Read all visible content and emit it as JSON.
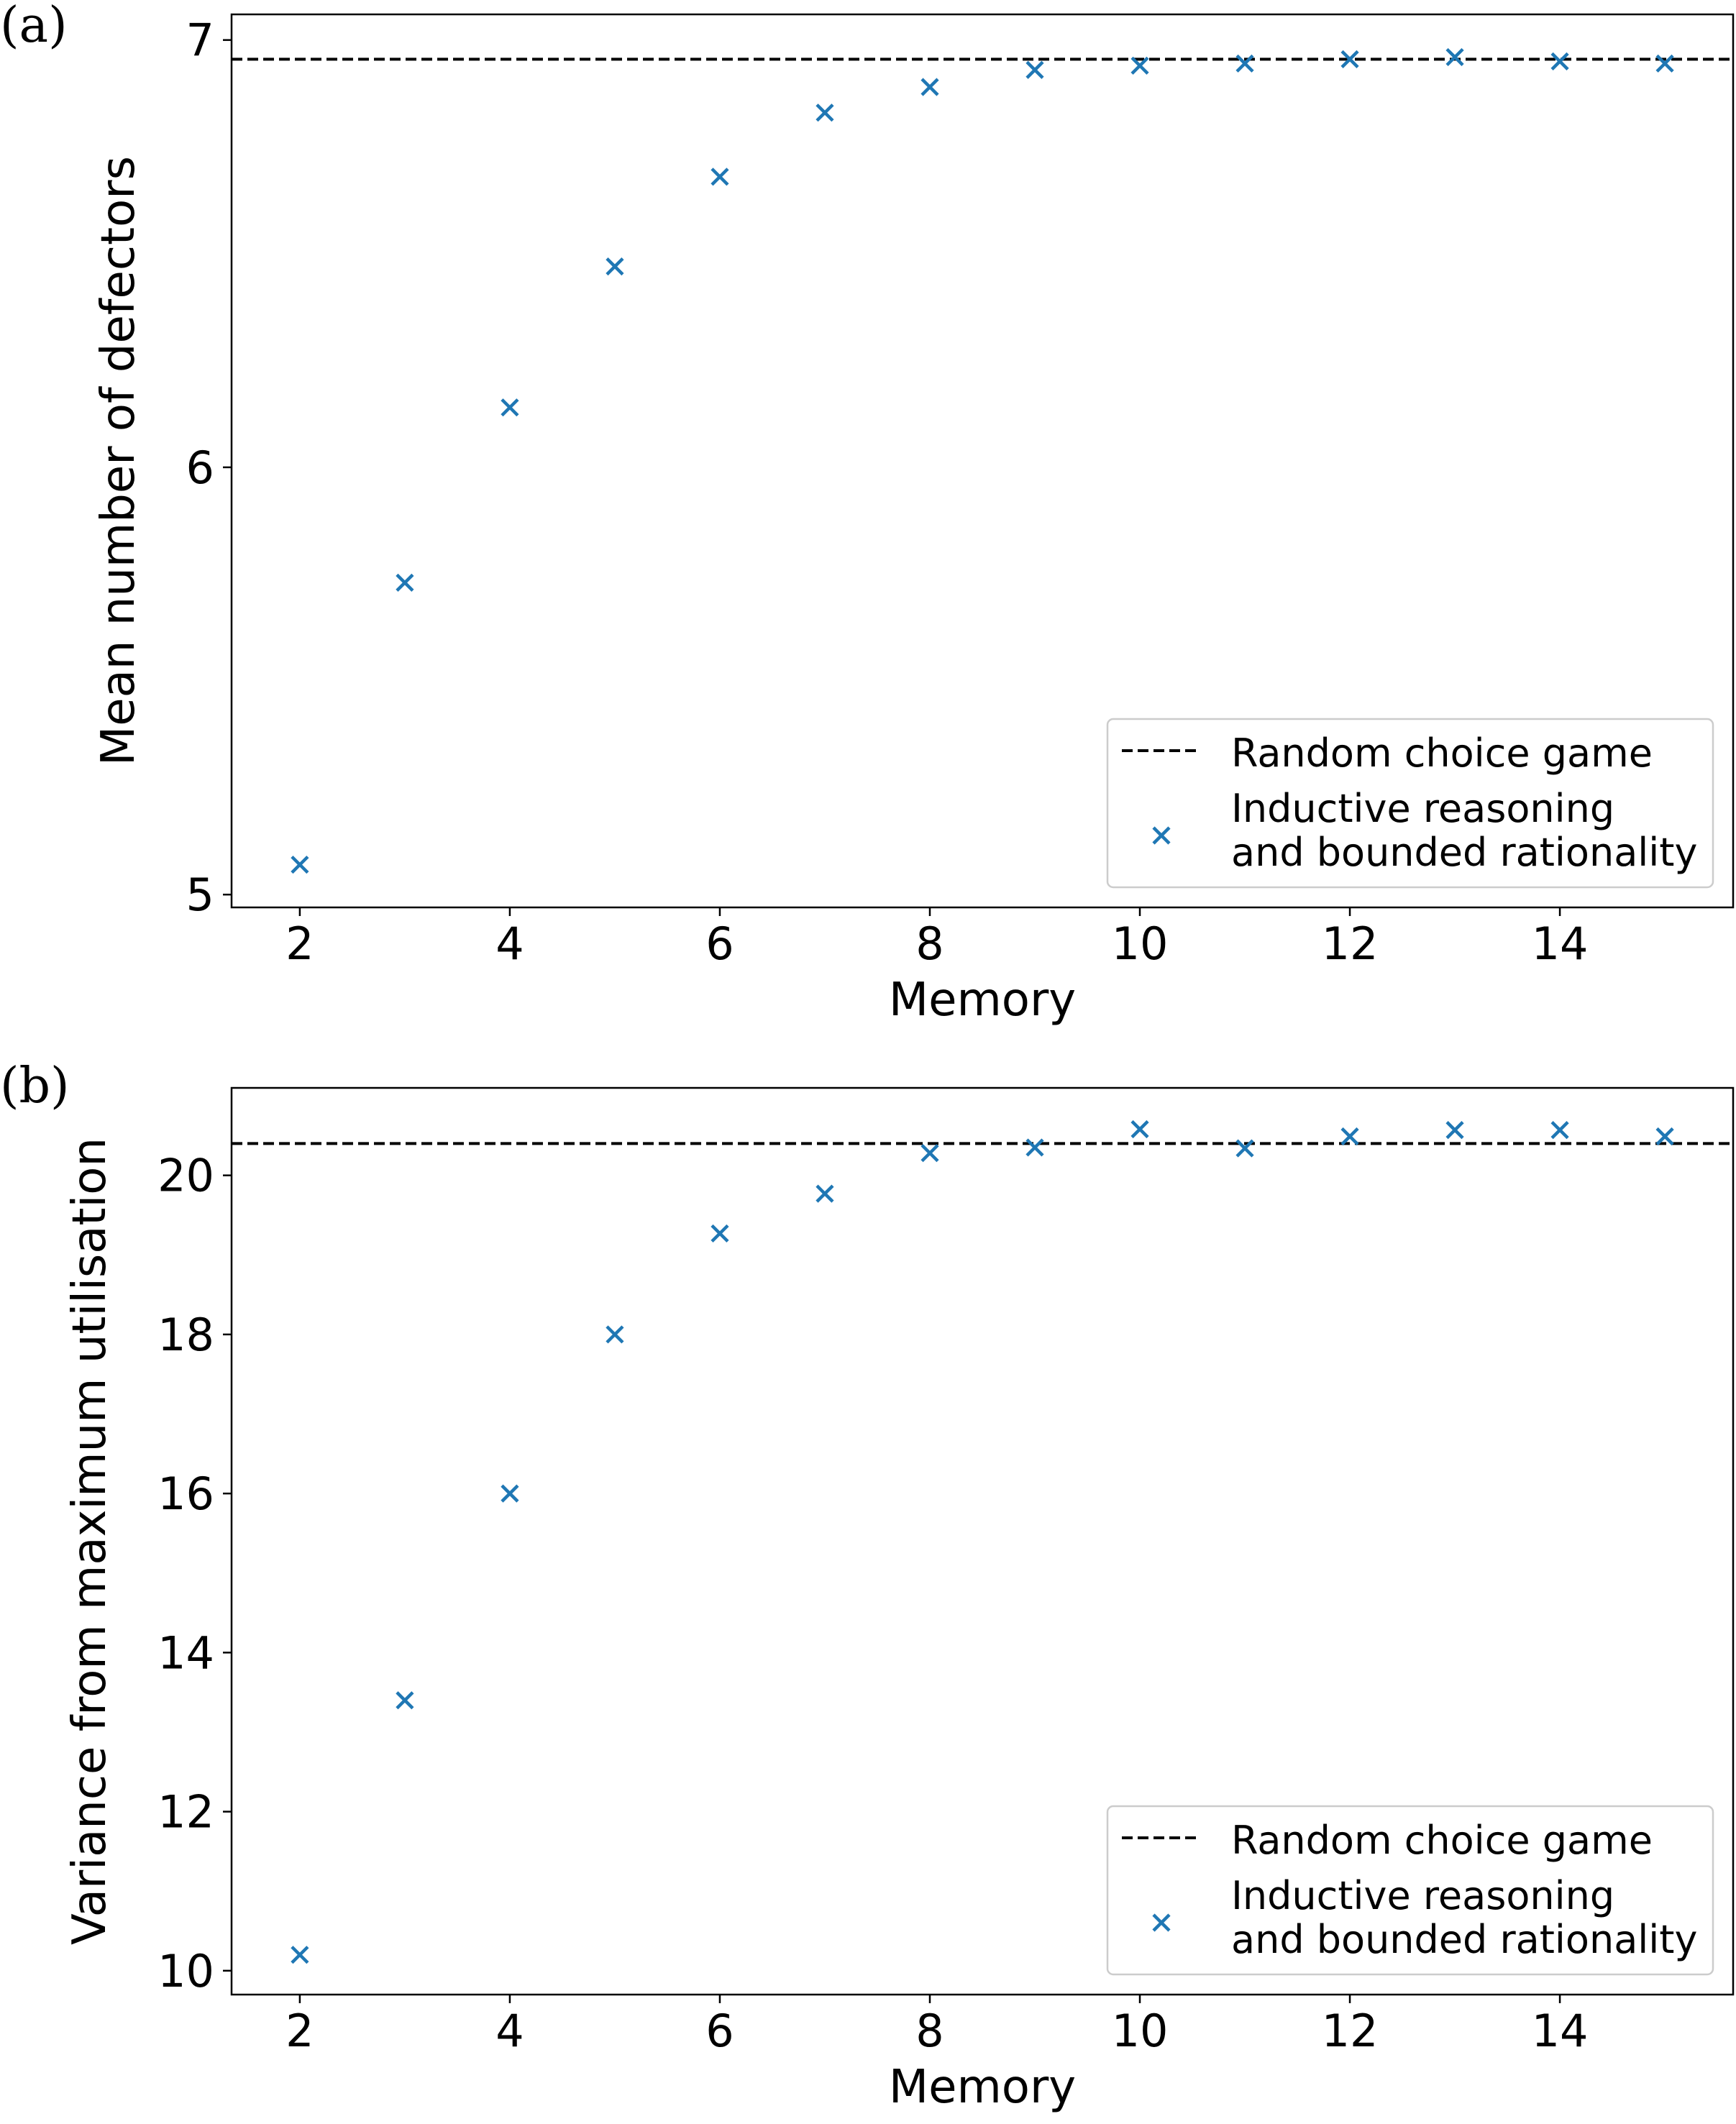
{
  "chart_data": [
    {
      "type": "scatter",
      "panel_label": "(a)",
      "xlabel": "Memory",
      "ylabel": "Mean number of defectors",
      "xlim": [
        1.35,
        15.65
      ],
      "ylim": [
        4.97,
        7.06
      ],
      "xticks": [
        2,
        4,
        6,
        8,
        10,
        12,
        14
      ],
      "yticks": [
        5,
        6,
        7
      ],
      "grid": false,
      "legend_position": "lower-right",
      "reference_line": {
        "name": "Random choice game",
        "y": 6.955,
        "style": "dashed",
        "color": "#000000"
      },
      "series": [
        {
          "name": "Inductive reasoning and bounded rationality",
          "legend_lines": [
            "Inductive reasoning",
            "and bounded rationality"
          ],
          "marker": "x",
          "color": "#1f77b4",
          "x": [
            2,
            3,
            4,
            5,
            6,
            7,
            8,
            9,
            10,
            11,
            12,
            13,
            14,
            15
          ],
          "y": [
            5.07,
            5.73,
            6.14,
            6.47,
            6.68,
            6.83,
            6.89,
            6.93,
            6.94,
            6.945,
            6.955,
            6.96,
            6.95,
            6.945
          ]
        }
      ]
    },
    {
      "type": "scatter",
      "panel_label": "(b)",
      "xlabel": "Memory",
      "ylabel": "Variance from maximum utilisation",
      "xlim": [
        1.35,
        15.65
      ],
      "ylim": [
        9.7,
        21.1
      ],
      "xticks": [
        2,
        4,
        6,
        8,
        10,
        12,
        14
      ],
      "yticks": [
        10,
        12,
        14,
        16,
        18,
        20
      ],
      "grid": false,
      "legend_position": "lower-right",
      "reference_line": {
        "name": "Random choice game",
        "y": 20.4,
        "style": "dashed",
        "color": "#000000"
      },
      "series": [
        {
          "name": "Inductive reasoning and bounded rationality",
          "legend_lines": [
            "Inductive reasoning",
            "and bounded rationality"
          ],
          "marker": "x",
          "color": "#1f77b4",
          "x": [
            2,
            3,
            4,
            5,
            6,
            7,
            8,
            9,
            10,
            11,
            12,
            13,
            14,
            15
          ],
          "y": [
            10.2,
            13.4,
            16.0,
            18.0,
            19.27,
            19.77,
            20.28,
            20.35,
            20.58,
            20.34,
            20.49,
            20.57,
            20.57,
            20.49
          ]
        }
      ]
    }
  ]
}
